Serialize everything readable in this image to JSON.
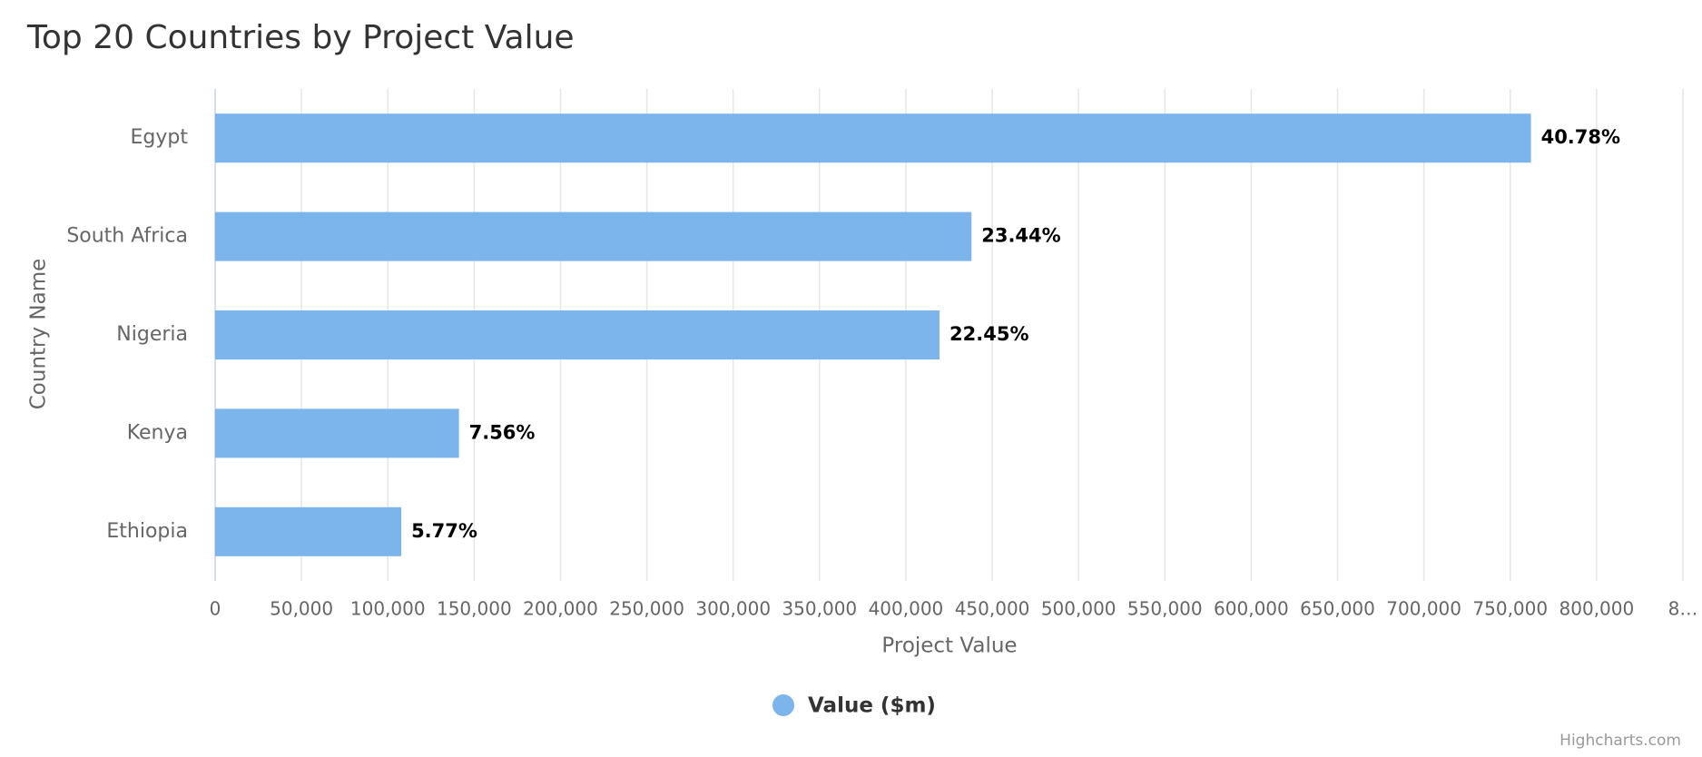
{
  "chart_data": {
    "type": "bar",
    "orientation": "horizontal",
    "title": "Top 20 Countries by Project Value",
    "categories": [
      "Egypt",
      "South Africa",
      "Nigeria",
      "Kenya",
      "Ethiopia"
    ],
    "series": [
      {
        "name": "Value ($m)",
        "color": "#7cb5ec",
        "values": [
          762000,
          438000,
          419500,
          141200,
          107800
        ],
        "value_labels": [
          "40.78%",
          "23.44%",
          "22.45%",
          "7.56%",
          "5.77%"
        ]
      }
    ],
    "x_axis_label": "Country Name",
    "y_axis_label": "Project Value",
    "ylim": [
      0,
      850000
    ],
    "yticks": [
      0,
      {
        "value": 50000,
        "label": "50,000"
      },
      {
        "value": 100000,
        "label": "100,000"
      },
      {
        "value": 150000,
        "label": "150,000"
      },
      {
        "value": 200000,
        "label": "200,000"
      },
      {
        "value": 250000,
        "label": "250,000"
      },
      {
        "value": 300000,
        "label": "300,000"
      },
      {
        "value": 350000,
        "label": "350,000"
      },
      {
        "value": 400000,
        "label": "400,000"
      },
      {
        "value": 450000,
        "label": "450,000"
      },
      {
        "value": 500000,
        "label": "500,000"
      },
      {
        "value": 550000,
        "label": "550,000"
      },
      {
        "value": 600000,
        "label": "600,000"
      },
      {
        "value": 650000,
        "label": "650,000"
      },
      {
        "value": 700000,
        "label": "700,000"
      },
      {
        "value": 750000,
        "label": "750,000"
      },
      {
        "value": 800000,
        "label": "800,000"
      },
      {
        "value": 850000,
        "label": "8…"
      }
    ],
    "grid": true,
    "legend": "bottom",
    "credits": "Highcharts.com"
  }
}
